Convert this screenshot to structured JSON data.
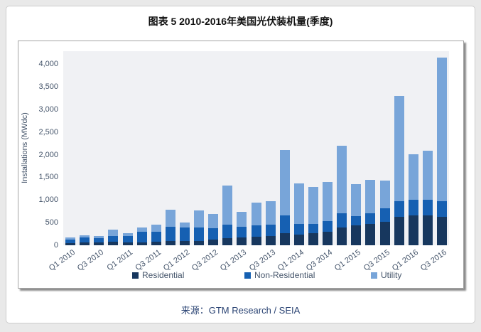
{
  "page": {
    "title": "图表 5  2010-2016年美国光伏装机量(季度)",
    "source": "来源：GTM Research / SEIA"
  },
  "chart_data": {
    "type": "bar",
    "stacked": true,
    "title": "图表 5  2010-2016年美国光伏装机量(季度)",
    "xlabel": "",
    "ylabel": "Installations (MWdc)",
    "ylim": [
      0,
      4000
    ],
    "ytick_step": 500,
    "ytick_labels": [
      "0",
      "500",
      "1,000",
      "1,500",
      "2,000",
      "2,500",
      "3,000",
      "3,500",
      "4,000"
    ],
    "grid": false,
    "legend_position": "bottom",
    "plot_background": "#f0f1f4",
    "categories": [
      "Q1 2010",
      "Q2 2010",
      "Q3 2010",
      "Q4 2010",
      "Q1 2011",
      "Q2 2011",
      "Q3 2011",
      "Q4 2011",
      "Q1 2012",
      "Q2 2012",
      "Q3 2012",
      "Q4 2012",
      "Q1 2013",
      "Q2 2013",
      "Q3 2013",
      "Q4 2013",
      "Q1 2014",
      "Q2 2014",
      "Q3 2014",
      "Q4 2014",
      "Q1 2015",
      "Q2 2015",
      "Q3 2015",
      "Q4 2015",
      "Q1 2016",
      "Q2 2016",
      "Q3 2016"
    ],
    "xtick_labels_shown": [
      "Q1 2010",
      "Q3 2010",
      "Q1 2011",
      "Q3 2011",
      "Q1 2012",
      "Q3 2012",
      "Q1 2013",
      "Q3 2013",
      "Q1 2014",
      "Q3 2014",
      "Q1 2015",
      "Q3 2015",
      "Q1 2016",
      "Q3 2016"
    ],
    "series": [
      {
        "name": "Residential",
        "color": "#17375e",
        "values": [
          55,
          65,
          70,
          75,
          70,
          65,
          75,
          90,
          95,
          100,
          120,
          160,
          165,
          185,
          200,
          270,
          240,
          260,
          300,
          395,
          440,
          475,
          520,
          630,
          660,
          655,
          630
        ]
      },
      {
        "name": "Non-Residential",
        "color": "#1660b2",
        "values": [
          70,
          100,
          90,
          135,
          140,
          230,
          220,
          315,
          290,
          290,
          260,
          290,
          245,
          250,
          250,
          390,
          225,
          215,
          240,
          315,
          210,
          230,
          290,
          345,
          340,
          350,
          350
        ]
      },
      {
        "name": "Utility",
        "color": "#78a5d9",
        "values": [
          45,
          50,
          45,
          140,
          50,
          95,
          165,
          375,
          125,
          385,
          310,
          865,
          330,
          500,
          525,
          1450,
          900,
          815,
          855,
          1490,
          695,
          735,
          620,
          2325,
          1010,
          1080,
          3165
        ]
      }
    ],
    "quarter_totals": [
      170,
      215,
      205,
      350,
      260,
      390,
      460,
      780,
      510,
      775,
      690,
      1315,
      740,
      935,
      975,
      2110,
      1365,
      1290,
      1395,
      2200,
      1345,
      1440,
      1430,
      3300,
      2010,
      2085,
      4145
    ]
  }
}
